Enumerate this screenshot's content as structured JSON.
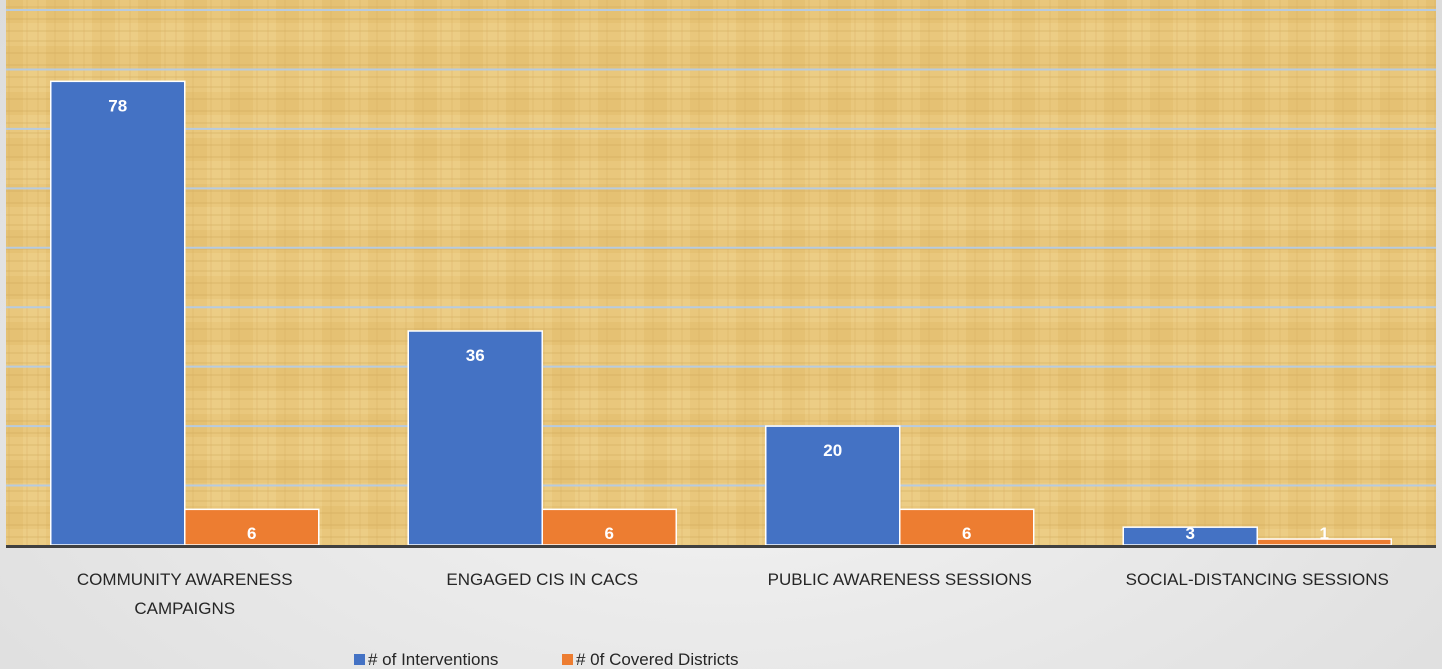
{
  "chart_data": {
    "type": "bar",
    "categories": [
      [
        "COMMUNITY AWARENESS",
        "CAMPAIGNS"
      ],
      [
        "ENGAGED CIS IN CACS"
      ],
      [
        "PUBLIC AWARENESS SESSIONS"
      ],
      [
        "SOCIAL-DISTANCING SESSIONS"
      ]
    ],
    "series": [
      {
        "name": "# of Interventions",
        "values": [
          78,
          36,
          20,
          3
        ],
        "color": "#4472c4"
      },
      {
        "name": "# 0f Covered Districts",
        "values": [
          6,
          6,
          6,
          1
        ],
        "color": "#ed7d31"
      }
    ],
    "ylim": [
      0,
      90
    ],
    "grid": true,
    "legend": "bottom",
    "title": "",
    "xlabel": "",
    "ylabel": ""
  }
}
